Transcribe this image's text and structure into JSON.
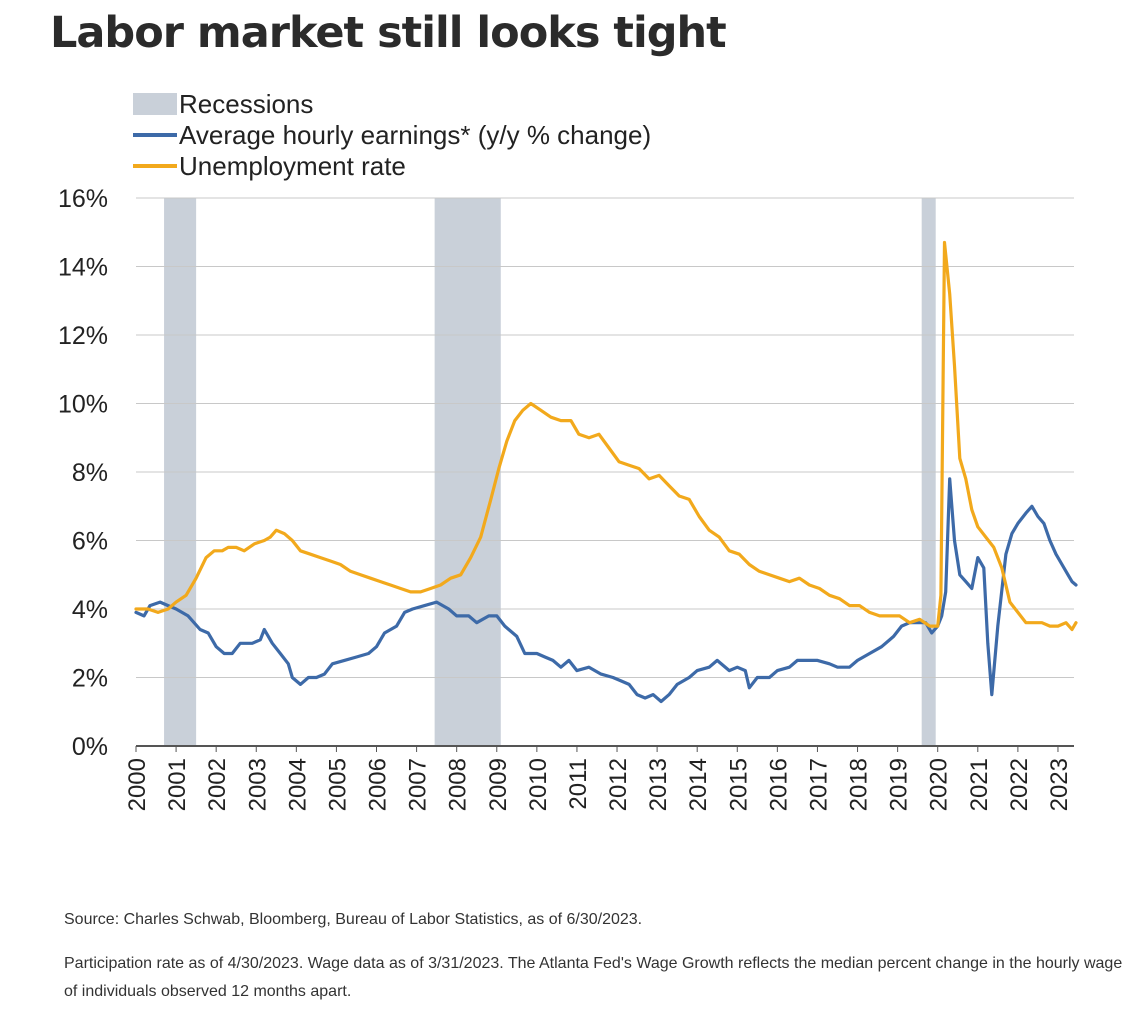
{
  "title": "Labor market still looks tight",
  "footnotes": {
    "source": "Source: Charles Schwab, Bloomberg, Bureau of Labor Statistics, as of 6/30/2023.",
    "note": "Participation rate as of 4/30/2023. Wage data as of 3/31/2023. The Atlanta Fed's Wage Growth reflects the median percent change in the hourly wage of individuals observed 12 months apart."
  },
  "chart_data": {
    "type": "line",
    "title": "Labor market still looks tight",
    "ylim": [
      0,
      16
    ],
    "xlim": [
      2000,
      2023.4
    ],
    "y_ticks": [
      0,
      2,
      4,
      6,
      8,
      10,
      12,
      14,
      16
    ],
    "y_tick_labels": [
      "0%",
      "2%",
      "4%",
      "6%",
      "8%",
      "10%",
      "12%",
      "14%",
      "16%"
    ],
    "x_tick_labels": [
      "2000",
      "2001",
      "2002",
      "2003",
      "2004",
      "2005",
      "2006",
      "2007",
      "2008",
      "2009",
      "2010",
      "2011",
      "2012",
      "2013",
      "2014",
      "2015",
      "2016",
      "2017",
      "2018",
      "2019",
      "2020",
      "2021",
      "2022",
      "2023"
    ],
    "grid": true,
    "legend_position": "top-left",
    "colors": {
      "recession": "#c9d0d9",
      "earnings": "#3d6aa8",
      "unemployment": "#f2a91c",
      "grid": "#c8c8c8",
      "axis": "#555555"
    },
    "recessions": [
      {
        "start": 2000.7,
        "end": 2001.5
      },
      {
        "start": 2007.45,
        "end": 2009.1
      },
      {
        "start": 2019.6,
        "end": 2019.95
      }
    ],
    "legend": [
      {
        "name": "Recessions",
        "kind": "area",
        "color": "#c9d0d9"
      },
      {
        "name": "Average hourly earnings* (y/y % change)",
        "kind": "line",
        "color": "#3d6aa8"
      },
      {
        "name": "Unemployment rate",
        "kind": "line",
        "color": "#f2a91c"
      }
    ],
    "series": [
      {
        "name": "Average hourly earnings* (y/y % change)",
        "color": "#3d6aa8",
        "points": [
          [
            2000.0,
            3.9
          ],
          [
            2000.2,
            3.8
          ],
          [
            2000.35,
            4.1
          ],
          [
            2000.6,
            4.2
          ],
          [
            2000.8,
            4.1
          ],
          [
            2001.0,
            4.0
          ],
          [
            2001.3,
            3.8
          ],
          [
            2001.6,
            3.4
          ],
          [
            2001.8,
            3.3
          ],
          [
            2002.0,
            2.9
          ],
          [
            2002.2,
            2.7
          ],
          [
            2002.4,
            2.7
          ],
          [
            2002.6,
            3.0
          ],
          [
            2002.9,
            3.0
          ],
          [
            2003.1,
            3.1
          ],
          [
            2003.2,
            3.4
          ],
          [
            2003.4,
            3.0
          ],
          [
            2003.6,
            2.7
          ],
          [
            2003.8,
            2.4
          ],
          [
            2003.9,
            2.0
          ],
          [
            2004.1,
            1.8
          ],
          [
            2004.3,
            2.0
          ],
          [
            2004.5,
            2.0
          ],
          [
            2004.7,
            2.1
          ],
          [
            2004.9,
            2.4
          ],
          [
            2005.2,
            2.5
          ],
          [
            2005.5,
            2.6
          ],
          [
            2005.8,
            2.7
          ],
          [
            2006.0,
            2.9
          ],
          [
            2006.2,
            3.3
          ],
          [
            2006.5,
            3.5
          ],
          [
            2006.7,
            3.9
          ],
          [
            2006.9,
            4.0
          ],
          [
            2007.2,
            4.1
          ],
          [
            2007.5,
            4.2
          ],
          [
            2007.8,
            4.0
          ],
          [
            2008.0,
            3.8
          ],
          [
            2008.3,
            3.8
          ],
          [
            2008.5,
            3.6
          ],
          [
            2008.8,
            3.8
          ],
          [
            2009.0,
            3.8
          ],
          [
            2009.2,
            3.5
          ],
          [
            2009.5,
            3.2
          ],
          [
            2009.7,
            2.7
          ],
          [
            2010.0,
            2.7
          ],
          [
            2010.2,
            2.6
          ],
          [
            2010.4,
            2.5
          ],
          [
            2010.6,
            2.3
          ],
          [
            2010.8,
            2.5
          ],
          [
            2011.0,
            2.2
          ],
          [
            2011.3,
            2.3
          ],
          [
            2011.6,
            2.1
          ],
          [
            2011.9,
            2.0
          ],
          [
            2012.1,
            1.9
          ],
          [
            2012.3,
            1.8
          ],
          [
            2012.5,
            1.5
          ],
          [
            2012.7,
            1.4
          ],
          [
            2012.9,
            1.5
          ],
          [
            2013.1,
            1.3
          ],
          [
            2013.3,
            1.5
          ],
          [
            2013.5,
            1.8
          ],
          [
            2013.8,
            2.0
          ],
          [
            2014.0,
            2.2
          ],
          [
            2014.3,
            2.3
          ],
          [
            2014.5,
            2.5
          ],
          [
            2014.8,
            2.2
          ],
          [
            2015.0,
            2.3
          ],
          [
            2015.2,
            2.2
          ],
          [
            2015.3,
            1.7
          ],
          [
            2015.5,
            2.0
          ],
          [
            2015.8,
            2.0
          ],
          [
            2016.0,
            2.2
          ],
          [
            2016.3,
            2.3
          ],
          [
            2016.5,
            2.5
          ],
          [
            2016.8,
            2.5
          ],
          [
            2017.0,
            2.5
          ],
          [
            2017.3,
            2.4
          ],
          [
            2017.5,
            2.3
          ],
          [
            2017.8,
            2.3
          ],
          [
            2018.0,
            2.5
          ],
          [
            2018.3,
            2.7
          ],
          [
            2018.6,
            2.9
          ],
          [
            2018.9,
            3.2
          ],
          [
            2019.1,
            3.5
          ],
          [
            2019.3,
            3.6
          ],
          [
            2019.5,
            3.6
          ],
          [
            2019.7,
            3.6
          ],
          [
            2019.85,
            3.3
          ],
          [
            2020.0,
            3.5
          ],
          [
            2020.1,
            3.8
          ],
          [
            2020.2,
            4.5
          ],
          [
            2020.3,
            7.8
          ],
          [
            2020.42,
            6.0
          ],
          [
            2020.55,
            5.0
          ],
          [
            2020.7,
            4.8
          ],
          [
            2020.85,
            4.6
          ],
          [
            2021.0,
            5.5
          ],
          [
            2021.15,
            5.2
          ],
          [
            2021.25,
            3.0
          ],
          [
            2021.35,
            1.5
          ],
          [
            2021.5,
            3.5
          ],
          [
            2021.7,
            5.6
          ],
          [
            2021.85,
            6.2
          ],
          [
            2022.0,
            6.5
          ],
          [
            2022.2,
            6.8
          ],
          [
            2022.35,
            7.0
          ],
          [
            2022.5,
            6.7
          ],
          [
            2022.65,
            6.5
          ],
          [
            2022.8,
            6.0
          ],
          [
            2022.95,
            5.6
          ],
          [
            2023.1,
            5.3
          ],
          [
            2023.25,
            5.0
          ],
          [
            2023.35,
            4.8
          ],
          [
            2023.45,
            4.7
          ]
        ]
      },
      {
        "name": "Unemployment rate",
        "color": "#f2a91c",
        "points": [
          [
            2000.0,
            4.0
          ],
          [
            2000.3,
            4.0
          ],
          [
            2000.55,
            3.9
          ],
          [
            2000.8,
            4.0
          ],
          [
            2001.0,
            4.2
          ],
          [
            2001.25,
            4.4
          ],
          [
            2001.5,
            4.9
          ],
          [
            2001.75,
            5.5
          ],
          [
            2001.95,
            5.7
          ],
          [
            2002.15,
            5.7
          ],
          [
            2002.3,
            5.8
          ],
          [
            2002.5,
            5.8
          ],
          [
            2002.7,
            5.7
          ],
          [
            2002.95,
            5.9
          ],
          [
            2003.2,
            6.0
          ],
          [
            2003.35,
            6.1
          ],
          [
            2003.5,
            6.3
          ],
          [
            2003.7,
            6.2
          ],
          [
            2003.9,
            6.0
          ],
          [
            2004.1,
            5.7
          ],
          [
            2004.35,
            5.6
          ],
          [
            2004.6,
            5.5
          ],
          [
            2004.85,
            5.4
          ],
          [
            2005.1,
            5.3
          ],
          [
            2005.35,
            5.1
          ],
          [
            2005.6,
            5.0
          ],
          [
            2005.85,
            4.9
          ],
          [
            2006.1,
            4.8
          ],
          [
            2006.35,
            4.7
          ],
          [
            2006.6,
            4.6
          ],
          [
            2006.85,
            4.5
          ],
          [
            2007.1,
            4.5
          ],
          [
            2007.35,
            4.6
          ],
          [
            2007.6,
            4.7
          ],
          [
            2007.85,
            4.9
          ],
          [
            2008.1,
            5.0
          ],
          [
            2008.35,
            5.5
          ],
          [
            2008.6,
            6.1
          ],
          [
            2008.85,
            7.2
          ],
          [
            2009.05,
            8.1
          ],
          [
            2009.25,
            8.9
          ],
          [
            2009.45,
            9.5
          ],
          [
            2009.65,
            9.8
          ],
          [
            2009.85,
            10.0
          ],
          [
            2010.1,
            9.8
          ],
          [
            2010.35,
            9.6
          ],
          [
            2010.6,
            9.5
          ],
          [
            2010.85,
            9.5
          ],
          [
            2011.05,
            9.1
          ],
          [
            2011.3,
            9.0
          ],
          [
            2011.55,
            9.1
          ],
          [
            2011.8,
            8.7
          ],
          [
            2012.05,
            8.3
          ],
          [
            2012.3,
            8.2
          ],
          [
            2012.55,
            8.1
          ],
          [
            2012.8,
            7.8
          ],
          [
            2013.05,
            7.9
          ],
          [
            2013.3,
            7.6
          ],
          [
            2013.55,
            7.3
          ],
          [
            2013.8,
            7.2
          ],
          [
            2014.05,
            6.7
          ],
          [
            2014.3,
            6.3
          ],
          [
            2014.55,
            6.1
          ],
          [
            2014.8,
            5.7
          ],
          [
            2015.05,
            5.6
          ],
          [
            2015.3,
            5.3
          ],
          [
            2015.55,
            5.1
          ],
          [
            2015.8,
            5.0
          ],
          [
            2016.05,
            4.9
          ],
          [
            2016.3,
            4.8
          ],
          [
            2016.55,
            4.9
          ],
          [
            2016.8,
            4.7
          ],
          [
            2017.05,
            4.6
          ],
          [
            2017.3,
            4.4
          ],
          [
            2017.55,
            4.3
          ],
          [
            2017.8,
            4.1
          ],
          [
            2018.05,
            4.1
          ],
          [
            2018.3,
            3.9
          ],
          [
            2018.55,
            3.8
          ],
          [
            2018.8,
            3.8
          ],
          [
            2019.05,
            3.8
          ],
          [
            2019.3,
            3.6
          ],
          [
            2019.55,
            3.7
          ],
          [
            2019.8,
            3.5
          ],
          [
            2020.0,
            3.5
          ],
          [
            2020.08,
            4.4
          ],
          [
            2020.17,
            14.7
          ],
          [
            2020.3,
            13.2
          ],
          [
            2020.42,
            11.1
          ],
          [
            2020.55,
            8.4
          ],
          [
            2020.7,
            7.8
          ],
          [
            2020.85,
            6.9
          ],
          [
            2021.0,
            6.4
          ],
          [
            2021.2,
            6.1
          ],
          [
            2021.4,
            5.8
          ],
          [
            2021.6,
            5.2
          ],
          [
            2021.8,
            4.2
          ],
          [
            2022.0,
            3.9
          ],
          [
            2022.2,
            3.6
          ],
          [
            2022.4,
            3.6
          ],
          [
            2022.6,
            3.6
          ],
          [
            2022.8,
            3.5
          ],
          [
            2023.0,
            3.5
          ],
          [
            2023.2,
            3.6
          ],
          [
            2023.35,
            3.4
          ],
          [
            2023.45,
            3.6
          ]
        ]
      }
    ]
  }
}
